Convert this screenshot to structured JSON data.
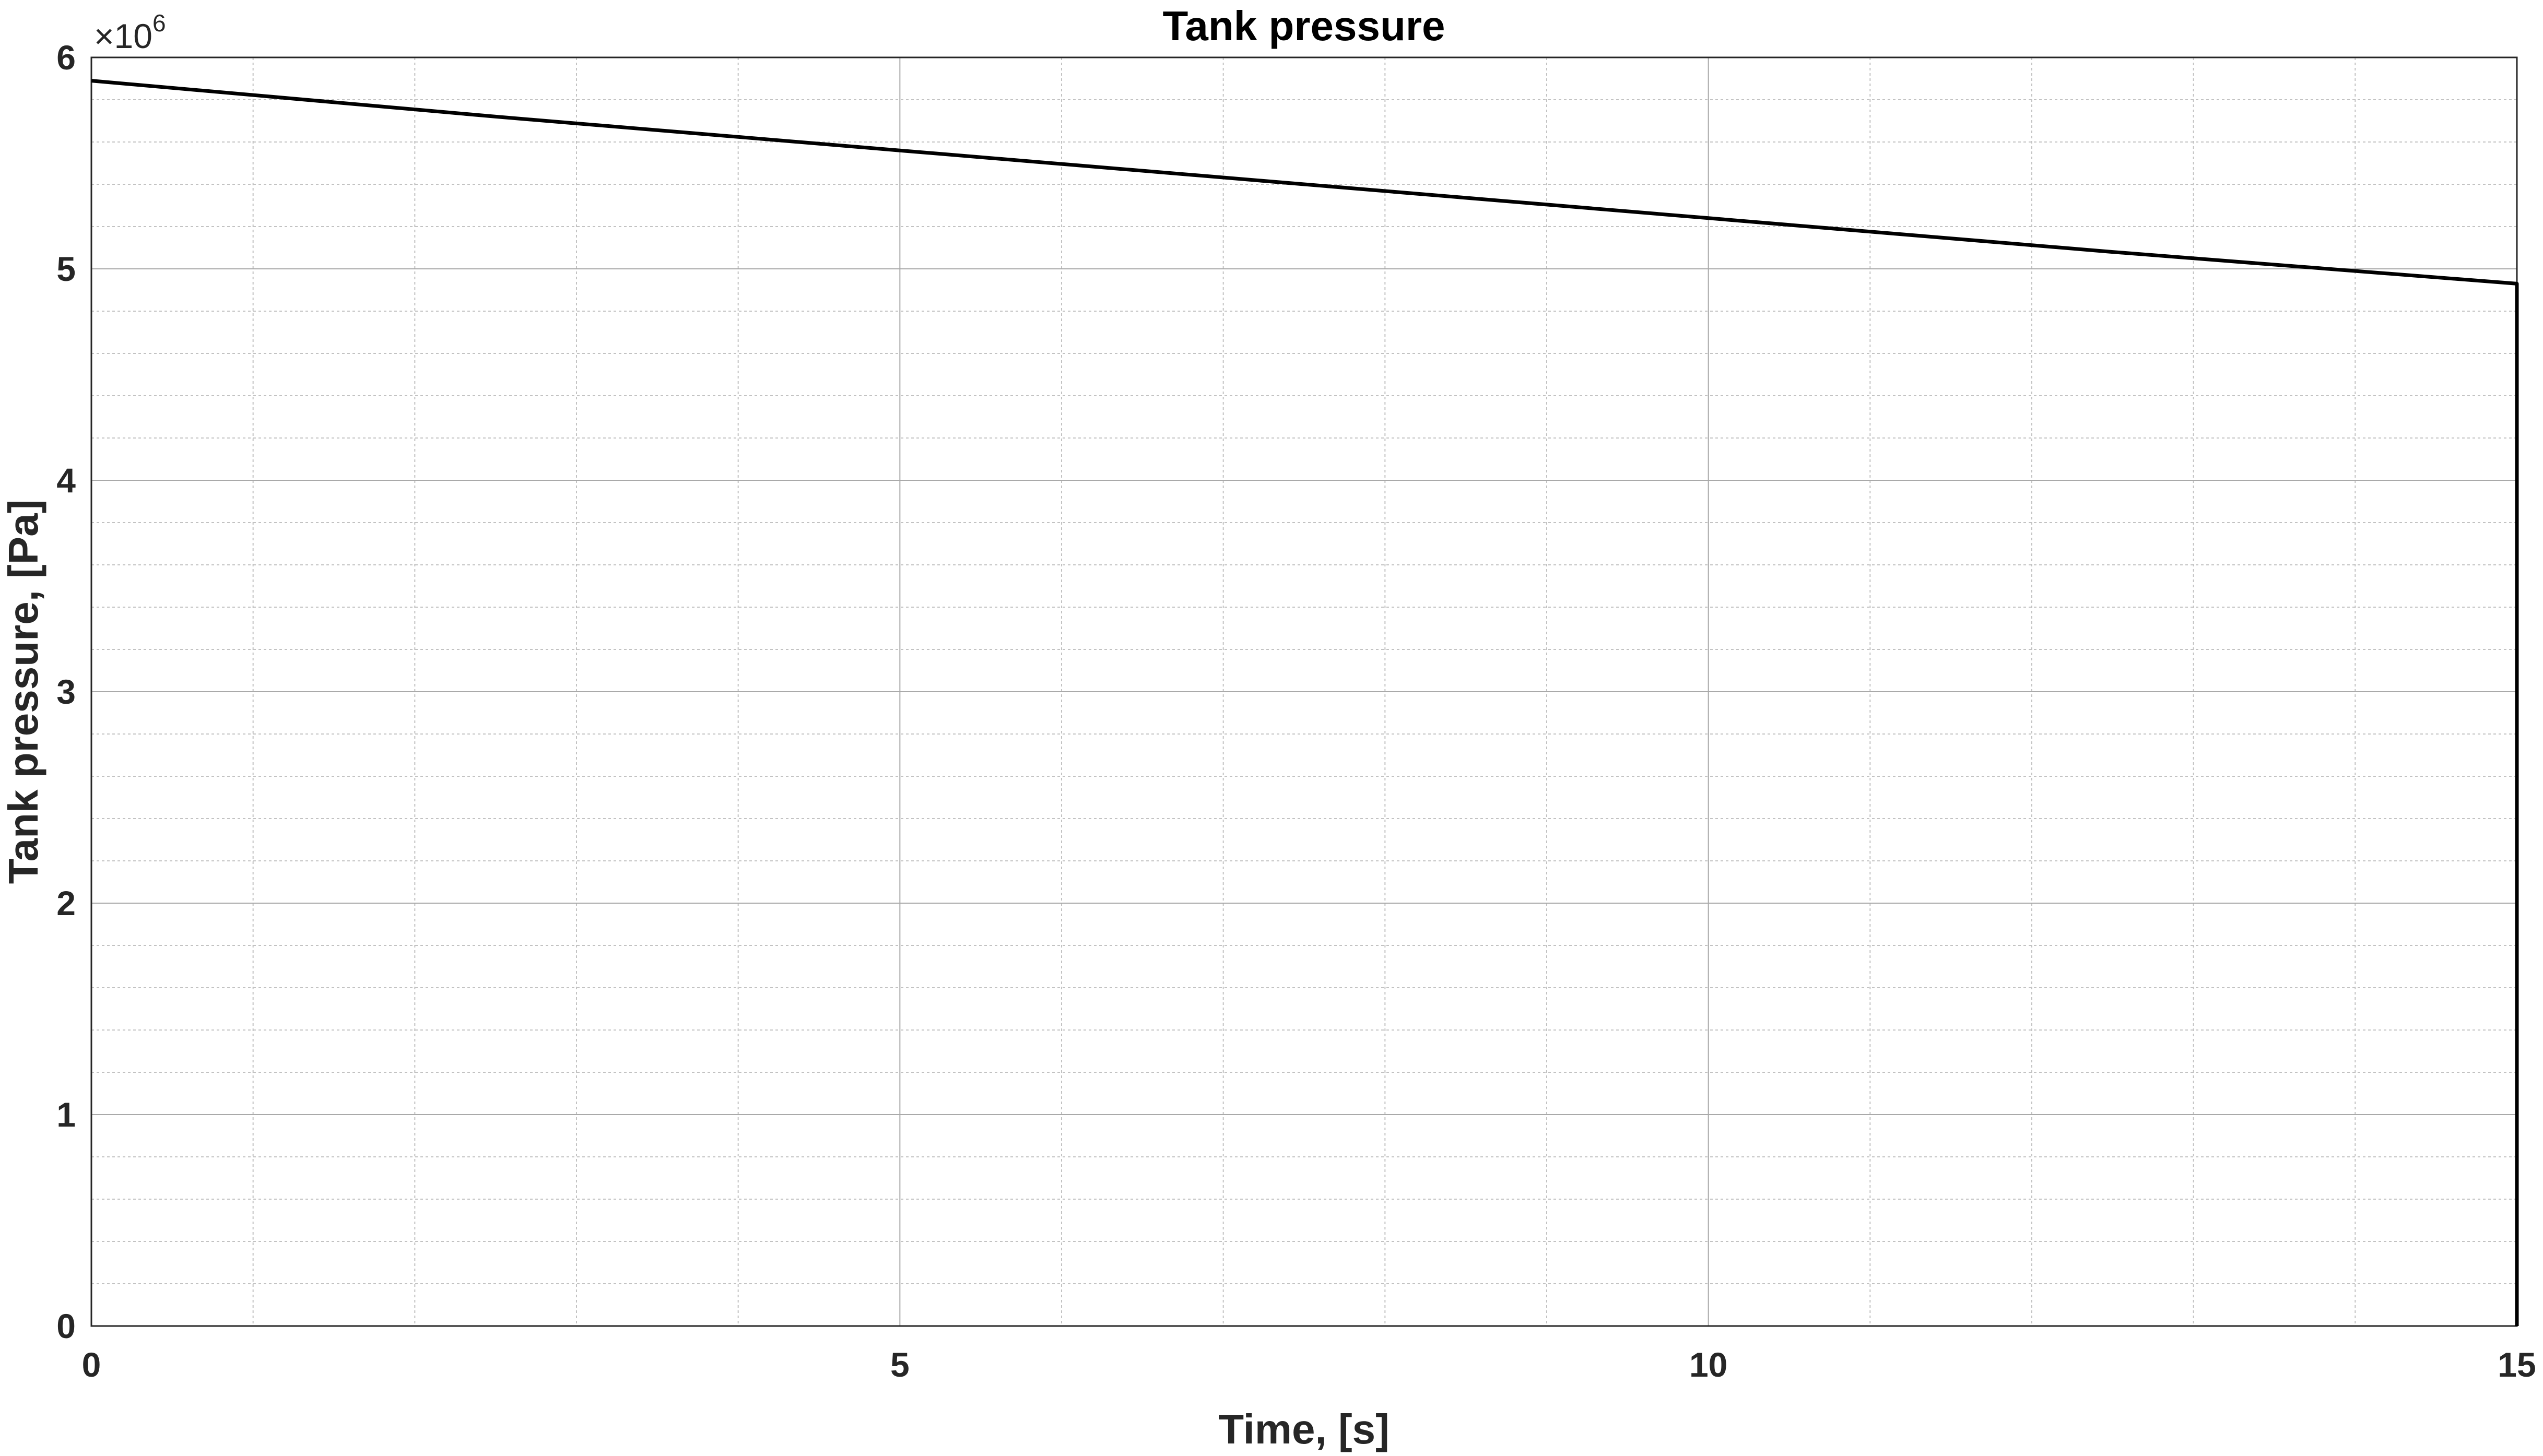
{
  "chart_data": {
    "type": "line",
    "title": "Tank pressure",
    "xlabel": "Time, [s]",
    "ylabel": "Tank pressure, [Pa]",
    "y_exponent_label": {
      "base": "×10",
      "power": "6"
    },
    "xlim": [
      0,
      15
    ],
    "ylim": [
      0,
      6
    ],
    "x_ticks": [
      "0",
      "5",
      "10",
      "15"
    ],
    "y_ticks": [
      "0",
      "1",
      "2",
      "3",
      "4",
      "5",
      "6"
    ],
    "x_tick_values": [
      0,
      5,
      10,
      15
    ],
    "y_tick_values": [
      0,
      1,
      2,
      3,
      4,
      5,
      6
    ],
    "x_minor_step": 1,
    "y_minor_step": 0.2,
    "grid": true,
    "minor_grid": true,
    "series": [
      {
        "color": "#000000",
        "x": [
          0,
          2.5,
          5,
          7.5,
          10,
          12.5,
          15,
          15
        ],
        "y": [
          5.89,
          5.72,
          5.56,
          5.4,
          5.24,
          5.08,
          4.93,
          0
        ]
      }
    ]
  }
}
